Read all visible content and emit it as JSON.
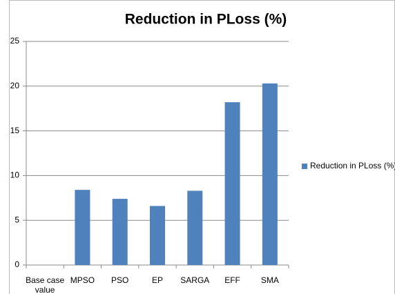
{
  "chart_data": {
    "type": "bar",
    "title": "Reduction in PLoss (%)",
    "categories": [
      "Base case value",
      "MPSO",
      "PSO",
      "EP",
      "SARGA",
      "EFF",
      "SMA"
    ],
    "series": [
      {
        "name": "Reduction in PLoss (%)",
        "color": "#4f81bd",
        "values": [
          0,
          8.4,
          7.4,
          6.6,
          8.3,
          18.2,
          20.3
        ]
      }
    ],
    "ylim": [
      0,
      25
    ],
    "yticks": [
      0,
      5,
      10,
      15,
      20,
      25
    ],
    "grid": true,
    "legend": "right"
  }
}
